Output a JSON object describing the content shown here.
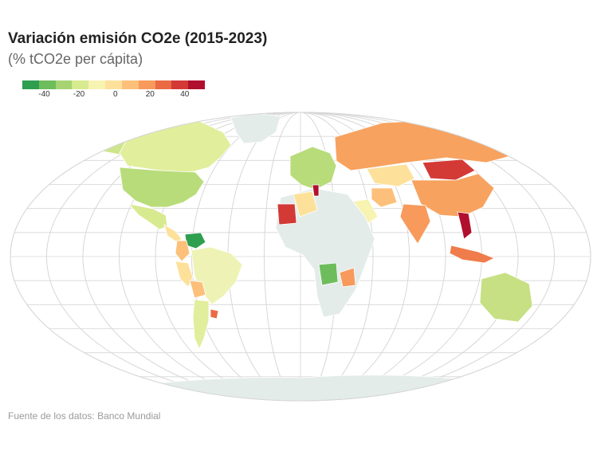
{
  "title": "Variación emisión CO2e (2015-2023)",
  "subtitle": "(% tCO2e per cápita)",
  "source": "Fuente de los datos: Banco Mundial",
  "legend": {
    "colors": [
      "#2e9e4f",
      "#6ebd5c",
      "#a6d472",
      "#d7ea8f",
      "#f7f3b0",
      "#fde19b",
      "#fcc07a",
      "#f79a5b",
      "#ea6a44",
      "#d33a36",
      "#b10f2e"
    ],
    "ticks": [
      {
        "label": "-40",
        "pos": 0.12
      },
      {
        "label": "-20",
        "pos": 0.31
      },
      {
        "label": "0",
        "pos": 0.51
      },
      {
        "label": "20",
        "pos": 0.7
      },
      {
        "label": "40",
        "pos": 0.89
      }
    ]
  },
  "colors": {
    "nodata": "#e3ece9",
    "graticule": "#d6d6d6",
    "border": "#ffffff"
  },
  "regions": [
    {
      "name": "Canada",
      "color": "#e1ee9c"
    },
    {
      "name": "Alaska",
      "color": "#cfe58b"
    },
    {
      "name": "United States",
      "color": "#b8dc7a"
    },
    {
      "name": "Mexico",
      "color": "#d7ea8f"
    },
    {
      "name": "Central America",
      "color": "#fde19b"
    },
    {
      "name": "Venezuela",
      "color": "#2e9e4f"
    },
    {
      "name": "Colombia",
      "color": "#fcc07a"
    },
    {
      "name": "Brazil",
      "color": "#eef2b5"
    },
    {
      "name": "Peru",
      "color": "#fde19b"
    },
    {
      "name": "Bolivia",
      "color": "#fcc07a"
    },
    {
      "name": "Argentina",
      "color": "#e1ee9c"
    },
    {
      "name": "Uruguay",
      "color": "#ea6a44"
    },
    {
      "name": "Greenland",
      "color": "#e3ece9"
    },
    {
      "name": "Russia",
      "color": "#f7a25f"
    },
    {
      "name": "Kazakhstan",
      "color": "#fde19b"
    },
    {
      "name": "Mongolia",
      "color": "#d33a36"
    },
    {
      "name": "China",
      "color": "#f7a25f"
    },
    {
      "name": "India",
      "color": "#f79a5b"
    },
    {
      "name": "Iran",
      "color": "#fcc07a"
    },
    {
      "name": "Saudi Arabia",
      "color": "#f7f3b0"
    },
    {
      "name": "Vietnam",
      "color": "#b10f2e"
    },
    {
      "name": "Indonesia",
      "color": "#f07c4c"
    },
    {
      "name": "Australia",
      "color": "#c6e083"
    },
    {
      "name": "Mauritania",
      "color": "#d33a36"
    },
    {
      "name": "Tunisia",
      "color": "#b10f2e"
    },
    {
      "name": "Algeria",
      "color": "#fde19b"
    },
    {
      "name": "Angola",
      "color": "#6ebd5c"
    },
    {
      "name": "Mozambique",
      "color": "#f79a5b"
    },
    {
      "name": "Antarctica",
      "color": "#e3ece9"
    }
  ]
}
